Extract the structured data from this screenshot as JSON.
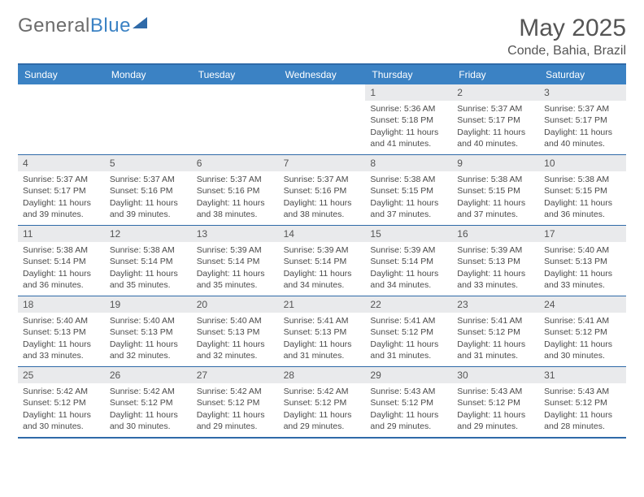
{
  "brand": {
    "part1": "General",
    "part2": "Blue"
  },
  "header": {
    "month_title": "May 2025",
    "location": "Conde, Bahia, Brazil"
  },
  "colors": {
    "header_bar": "#3b82c4",
    "rule": "#2f6aa8",
    "daynum_bg": "#e9eaec",
    "text": "#4a4a4a",
    "title": "#555555"
  },
  "days_of_week": [
    "Sunday",
    "Monday",
    "Tuesday",
    "Wednesday",
    "Thursday",
    "Friday",
    "Saturday"
  ],
  "weeks": [
    [
      null,
      null,
      null,
      null,
      {
        "n": "1",
        "sunrise": "Sunrise: 5:36 AM",
        "sunset": "Sunset: 5:18 PM",
        "daylight": "Daylight: 11 hours and 41 minutes."
      },
      {
        "n": "2",
        "sunrise": "Sunrise: 5:37 AM",
        "sunset": "Sunset: 5:17 PM",
        "daylight": "Daylight: 11 hours and 40 minutes."
      },
      {
        "n": "3",
        "sunrise": "Sunrise: 5:37 AM",
        "sunset": "Sunset: 5:17 PM",
        "daylight": "Daylight: 11 hours and 40 minutes."
      }
    ],
    [
      {
        "n": "4",
        "sunrise": "Sunrise: 5:37 AM",
        "sunset": "Sunset: 5:17 PM",
        "daylight": "Daylight: 11 hours and 39 minutes."
      },
      {
        "n": "5",
        "sunrise": "Sunrise: 5:37 AM",
        "sunset": "Sunset: 5:16 PM",
        "daylight": "Daylight: 11 hours and 39 minutes."
      },
      {
        "n": "6",
        "sunrise": "Sunrise: 5:37 AM",
        "sunset": "Sunset: 5:16 PM",
        "daylight": "Daylight: 11 hours and 38 minutes."
      },
      {
        "n": "7",
        "sunrise": "Sunrise: 5:37 AM",
        "sunset": "Sunset: 5:16 PM",
        "daylight": "Daylight: 11 hours and 38 minutes."
      },
      {
        "n": "8",
        "sunrise": "Sunrise: 5:38 AM",
        "sunset": "Sunset: 5:15 PM",
        "daylight": "Daylight: 11 hours and 37 minutes."
      },
      {
        "n": "9",
        "sunrise": "Sunrise: 5:38 AM",
        "sunset": "Sunset: 5:15 PM",
        "daylight": "Daylight: 11 hours and 37 minutes."
      },
      {
        "n": "10",
        "sunrise": "Sunrise: 5:38 AM",
        "sunset": "Sunset: 5:15 PM",
        "daylight": "Daylight: 11 hours and 36 minutes."
      }
    ],
    [
      {
        "n": "11",
        "sunrise": "Sunrise: 5:38 AM",
        "sunset": "Sunset: 5:14 PM",
        "daylight": "Daylight: 11 hours and 36 minutes."
      },
      {
        "n": "12",
        "sunrise": "Sunrise: 5:38 AM",
        "sunset": "Sunset: 5:14 PM",
        "daylight": "Daylight: 11 hours and 35 minutes."
      },
      {
        "n": "13",
        "sunrise": "Sunrise: 5:39 AM",
        "sunset": "Sunset: 5:14 PM",
        "daylight": "Daylight: 11 hours and 35 minutes."
      },
      {
        "n": "14",
        "sunrise": "Sunrise: 5:39 AM",
        "sunset": "Sunset: 5:14 PM",
        "daylight": "Daylight: 11 hours and 34 minutes."
      },
      {
        "n": "15",
        "sunrise": "Sunrise: 5:39 AM",
        "sunset": "Sunset: 5:14 PM",
        "daylight": "Daylight: 11 hours and 34 minutes."
      },
      {
        "n": "16",
        "sunrise": "Sunrise: 5:39 AM",
        "sunset": "Sunset: 5:13 PM",
        "daylight": "Daylight: 11 hours and 33 minutes."
      },
      {
        "n": "17",
        "sunrise": "Sunrise: 5:40 AM",
        "sunset": "Sunset: 5:13 PM",
        "daylight": "Daylight: 11 hours and 33 minutes."
      }
    ],
    [
      {
        "n": "18",
        "sunrise": "Sunrise: 5:40 AM",
        "sunset": "Sunset: 5:13 PM",
        "daylight": "Daylight: 11 hours and 33 minutes."
      },
      {
        "n": "19",
        "sunrise": "Sunrise: 5:40 AM",
        "sunset": "Sunset: 5:13 PM",
        "daylight": "Daylight: 11 hours and 32 minutes."
      },
      {
        "n": "20",
        "sunrise": "Sunrise: 5:40 AM",
        "sunset": "Sunset: 5:13 PM",
        "daylight": "Daylight: 11 hours and 32 minutes."
      },
      {
        "n": "21",
        "sunrise": "Sunrise: 5:41 AM",
        "sunset": "Sunset: 5:13 PM",
        "daylight": "Daylight: 11 hours and 31 minutes."
      },
      {
        "n": "22",
        "sunrise": "Sunrise: 5:41 AM",
        "sunset": "Sunset: 5:12 PM",
        "daylight": "Daylight: 11 hours and 31 minutes."
      },
      {
        "n": "23",
        "sunrise": "Sunrise: 5:41 AM",
        "sunset": "Sunset: 5:12 PM",
        "daylight": "Daylight: 11 hours and 31 minutes."
      },
      {
        "n": "24",
        "sunrise": "Sunrise: 5:41 AM",
        "sunset": "Sunset: 5:12 PM",
        "daylight": "Daylight: 11 hours and 30 minutes."
      }
    ],
    [
      {
        "n": "25",
        "sunrise": "Sunrise: 5:42 AM",
        "sunset": "Sunset: 5:12 PM",
        "daylight": "Daylight: 11 hours and 30 minutes."
      },
      {
        "n": "26",
        "sunrise": "Sunrise: 5:42 AM",
        "sunset": "Sunset: 5:12 PM",
        "daylight": "Daylight: 11 hours and 30 minutes."
      },
      {
        "n": "27",
        "sunrise": "Sunrise: 5:42 AM",
        "sunset": "Sunset: 5:12 PM",
        "daylight": "Daylight: 11 hours and 29 minutes."
      },
      {
        "n": "28",
        "sunrise": "Sunrise: 5:42 AM",
        "sunset": "Sunset: 5:12 PM",
        "daylight": "Daylight: 11 hours and 29 minutes."
      },
      {
        "n": "29",
        "sunrise": "Sunrise: 5:43 AM",
        "sunset": "Sunset: 5:12 PM",
        "daylight": "Daylight: 11 hours and 29 minutes."
      },
      {
        "n": "30",
        "sunrise": "Sunrise: 5:43 AM",
        "sunset": "Sunset: 5:12 PM",
        "daylight": "Daylight: 11 hours and 29 minutes."
      },
      {
        "n": "31",
        "sunrise": "Sunrise: 5:43 AM",
        "sunset": "Sunset: 5:12 PM",
        "daylight": "Daylight: 11 hours and 28 minutes."
      }
    ]
  ]
}
